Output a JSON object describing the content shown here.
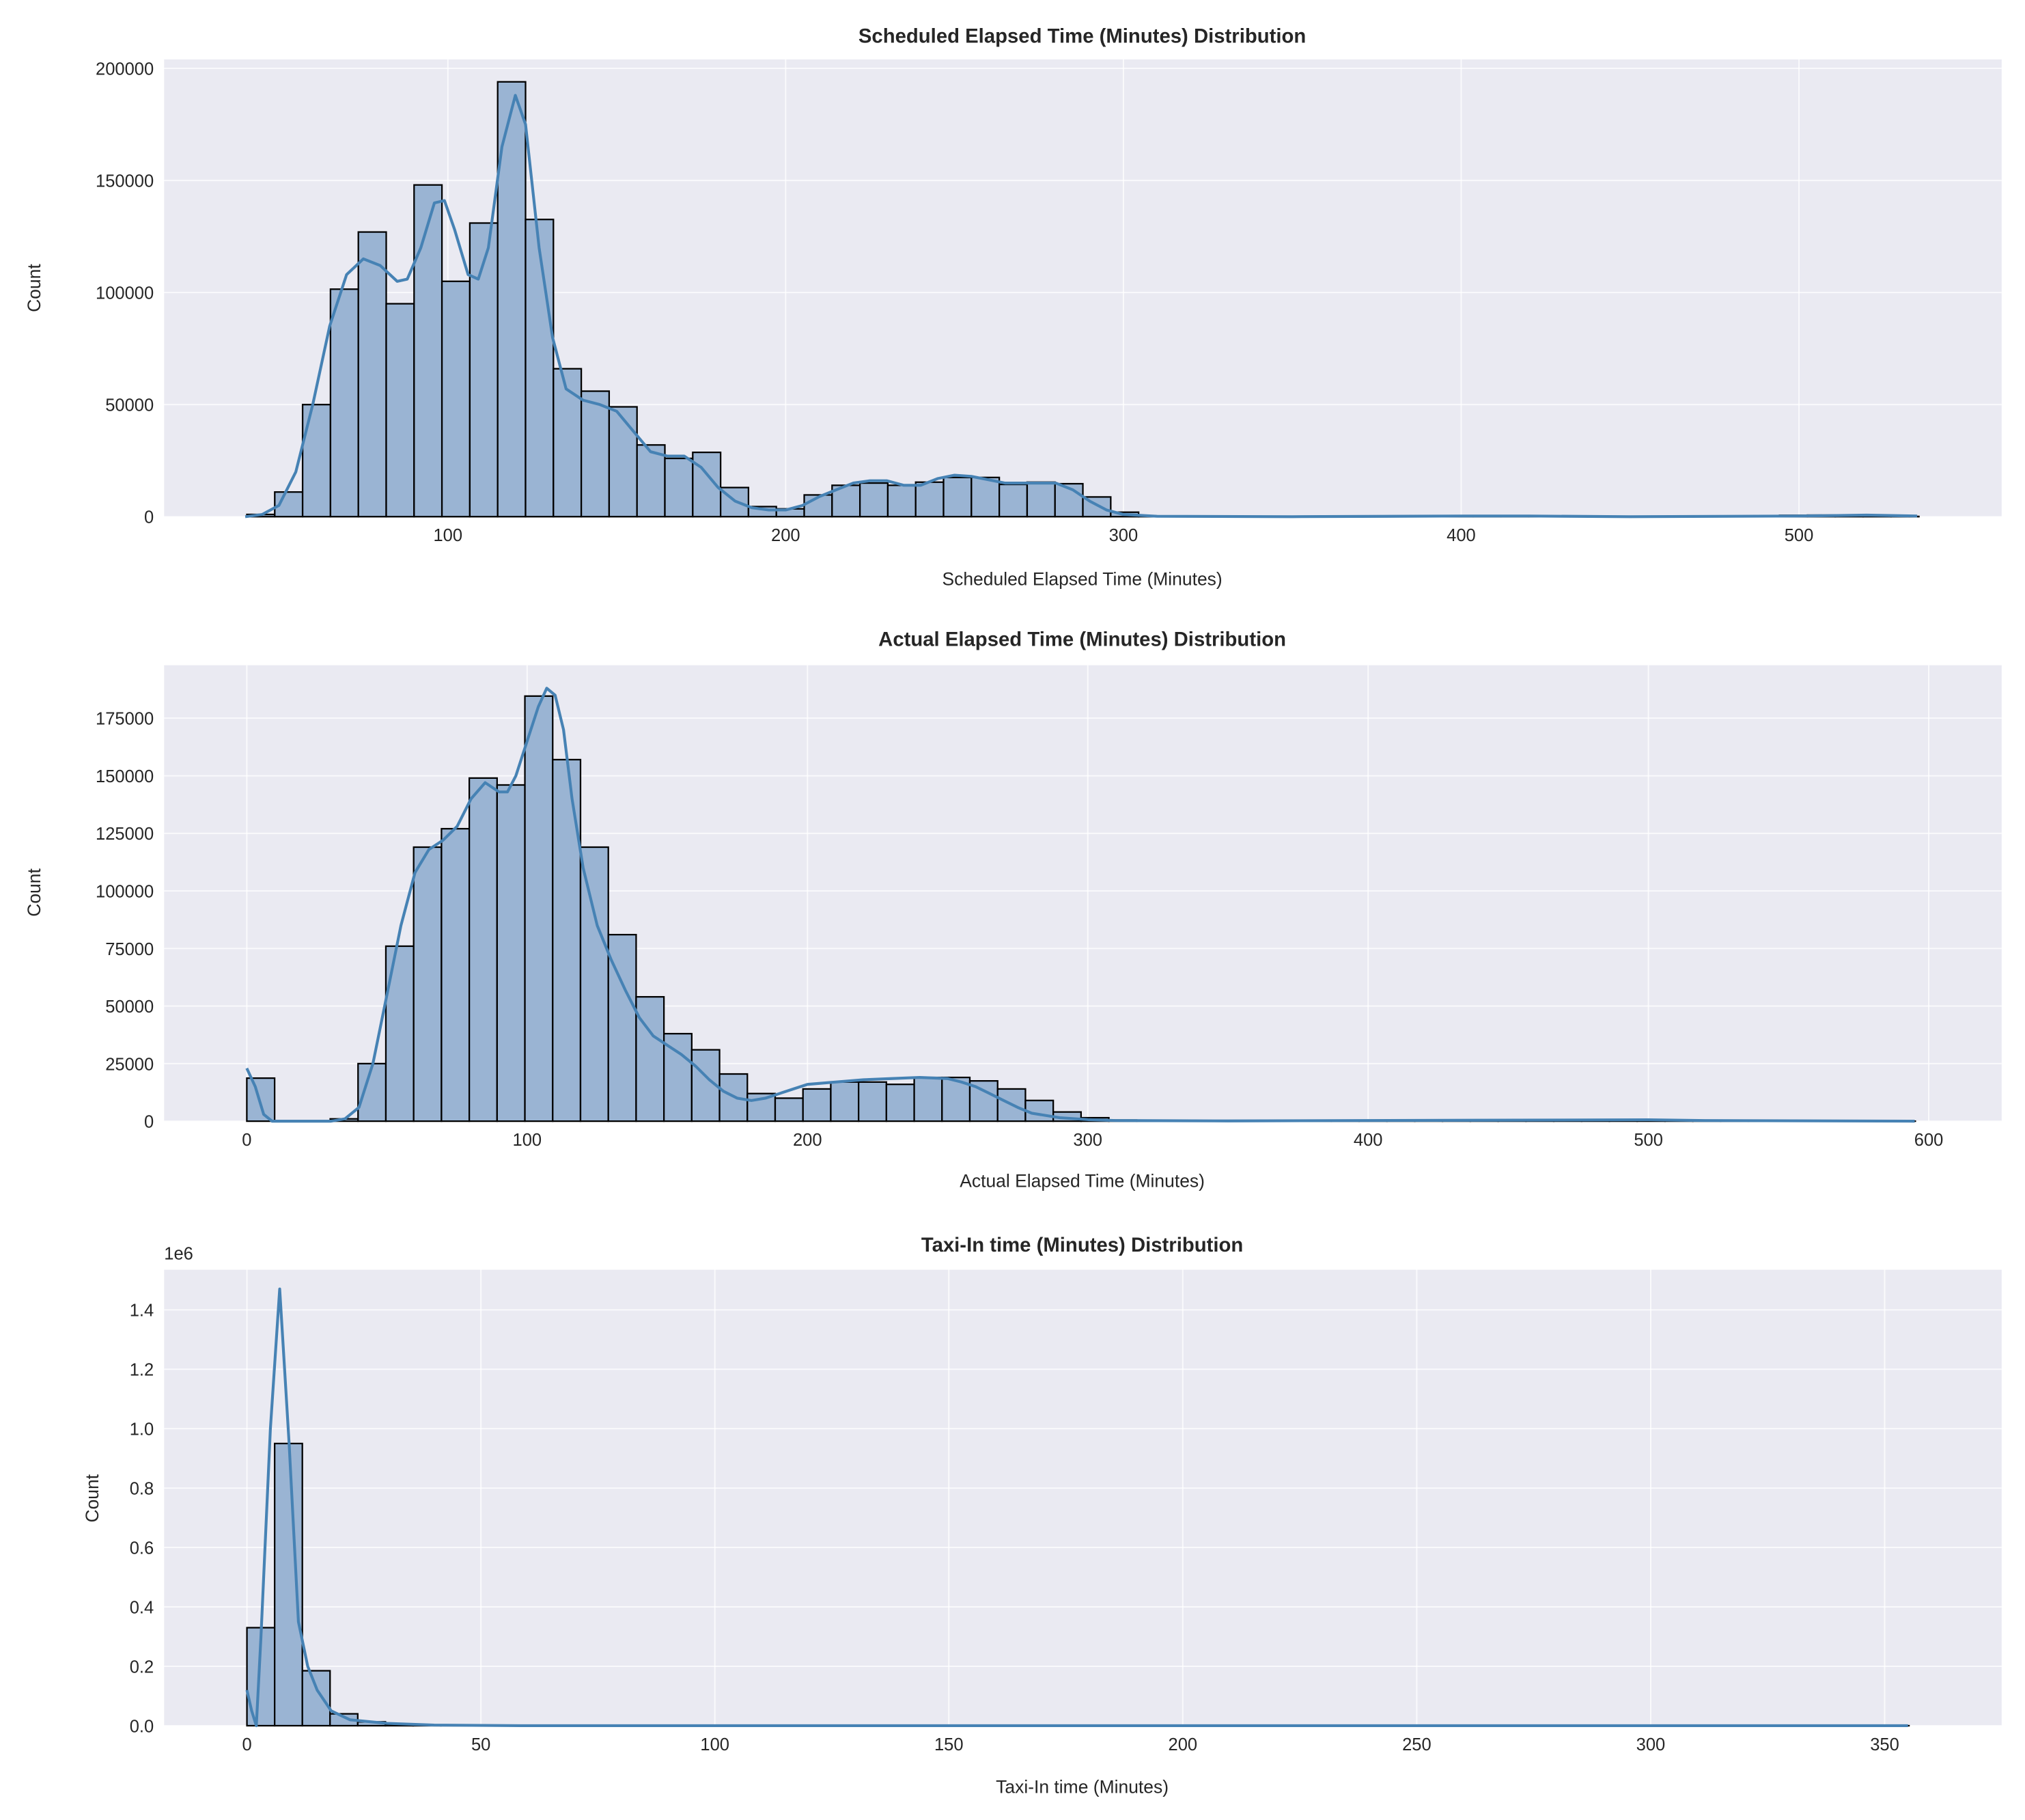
{
  "chart_data": [
    {
      "type": "histogram",
      "title": "Scheduled Elapsed Time (Minutes) Distribution",
      "xlabel": "Scheduled Elapsed Time (Minutes)",
      "ylabel": "Count",
      "xlim": [
        16,
        560
      ],
      "ylim": [
        0,
        204000
      ],
      "xticks": [
        100,
        200,
        300,
        400,
        500
      ],
      "yticks": [
        0,
        50000,
        100000,
        150000,
        200000
      ],
      "ytick_labels": [
        "0",
        "50000",
        "100000",
        "150000",
        "200000"
      ],
      "y_offset_text": "",
      "grid": true,
      "bin_start": 40.5,
      "bin_width": 8.25,
      "values": [
        1000,
        11000,
        50000,
        101500,
        127000,
        95000,
        148000,
        105000,
        131000,
        194000,
        132600,
        66000,
        56000,
        49000,
        32000,
        26000,
        28700,
        13000,
        4500,
        3500,
        9700,
        14000,
        15000,
        14000,
        15400,
        17500,
        17500,
        14400,
        15400,
        14700,
        8800,
        2000,
        300,
        100,
        50,
        30,
        20,
        20,
        20,
        30,
        50,
        100,
        300,
        300,
        200,
        100,
        50,
        30,
        20,
        20,
        20,
        50,
        100,
        200,
        300,
        600,
        700,
        400,
        200,
        100
      ],
      "kde": [
        [
          40,
          0
        ],
        [
          45,
          1000
        ],
        [
          50,
          5000
        ],
        [
          55,
          20000
        ],
        [
          60,
          50000
        ],
        [
          65,
          85000
        ],
        [
          70,
          108000
        ],
        [
          75,
          115000
        ],
        [
          80,
          112000
        ],
        [
          85,
          105000
        ],
        [
          88,
          106000
        ],
        [
          92,
          120000
        ],
        [
          96,
          140000
        ],
        [
          99,
          141000
        ],
        [
          102,
          128000
        ],
        [
          106,
          108000
        ],
        [
          109,
          106000
        ],
        [
          112,
          120000
        ],
        [
          116,
          165000
        ],
        [
          120,
          188000
        ],
        [
          123,
          175000
        ],
        [
          127,
          120000
        ],
        [
          131,
          80000
        ],
        [
          135,
          57000
        ],
        [
          140,
          52000
        ],
        [
          145,
          50000
        ],
        [
          150,
          47000
        ],
        [
          155,
          38000
        ],
        [
          160,
          29000
        ],
        [
          165,
          27000
        ],
        [
          170,
          27000
        ],
        [
          175,
          22000
        ],
        [
          180,
          13000
        ],
        [
          185,
          7000
        ],
        [
          190,
          4000
        ],
        [
          195,
          3000
        ],
        [
          200,
          3000
        ],
        [
          205,
          5000
        ],
        [
          210,
          9000
        ],
        [
          215,
          12000
        ],
        [
          220,
          15000
        ],
        [
          225,
          16000
        ],
        [
          230,
          16000
        ],
        [
          235,
          14000
        ],
        [
          240,
          14000
        ],
        [
          245,
          17000
        ],
        [
          250,
          18500
        ],
        [
          255,
          18000
        ],
        [
          260,
          16500
        ],
        [
          265,
          15000
        ],
        [
          270,
          15000
        ],
        [
          275,
          15000
        ],
        [
          280,
          15000
        ],
        [
          285,
          12000
        ],
        [
          290,
          7000
        ],
        [
          295,
          3000
        ],
        [
          300,
          1000
        ],
        [
          310,
          200
        ],
        [
          350,
          0
        ],
        [
          400,
          300
        ],
        [
          420,
          300
        ],
        [
          450,
          0
        ],
        [
          500,
          300
        ],
        [
          520,
          700
        ],
        [
          535,
          300
        ]
      ],
      "colors": {
        "bar_fill": "#9AB4D3",
        "bar_edge": "#000000",
        "kde": "#4682B4",
        "background": "#EAEAF2",
        "grid": "#FFFFFF"
      }
    },
    {
      "type": "histogram",
      "title": "Actual Elapsed Time (Minutes) Distribution",
      "xlabel": "Actual Elapsed Time (Minutes)",
      "ylabel": "Count",
      "xlim": [
        -29.5,
        626
      ],
      "ylim": [
        0,
        198000
      ],
      "xticks": [
        0,
        100,
        200,
        300,
        400,
        500,
        600
      ],
      "yticks": [
        0,
        25000,
        50000,
        75000,
        100000,
        125000,
        150000,
        175000
      ],
      "ytick_labels": [
        "0",
        "25000",
        "50000",
        "75000",
        "100000",
        "125000",
        "150000",
        "175000"
      ],
      "y_offset_text": "",
      "grid": true,
      "bin_start": 0,
      "bin_width": 9.92,
      "values": [
        18700,
        0,
        0,
        1000,
        25000,
        76000,
        119000,
        127000,
        149000,
        146000,
        184600,
        157000,
        119000,
        81000,
        54000,
        38000,
        31000,
        20500,
        12000,
        10000,
        14000,
        17000,
        17000,
        16000,
        19000,
        19000,
        17500,
        14000,
        9000,
        4000,
        1500,
        500,
        200,
        100,
        50,
        30,
        20,
        20,
        20,
        20,
        20,
        20,
        20,
        20,
        20,
        30,
        50,
        100,
        300,
        500,
        600,
        300,
        100,
        50,
        30,
        20,
        20,
        20,
        20,
        10
      ],
      "kde": [
        [
          0,
          23000
        ],
        [
          3,
          15000
        ],
        [
          6,
          3000
        ],
        [
          9,
          0
        ],
        [
          30,
          0
        ],
        [
          35,
          1000
        ],
        [
          40,
          6000
        ],
        [
          45,
          25000
        ],
        [
          50,
          55000
        ],
        [
          55,
          85000
        ],
        [
          60,
          108000
        ],
        [
          65,
          118000
        ],
        [
          70,
          122000
        ],
        [
          75,
          128000
        ],
        [
          80,
          140000
        ],
        [
          85,
          147000
        ],
        [
          90,
          143000
        ],
        [
          93,
          143000
        ],
        [
          96,
          150000
        ],
        [
          100,
          165000
        ],
        [
          104,
          180000
        ],
        [
          107,
          188000
        ],
        [
          110,
          185000
        ],
        [
          113,
          170000
        ],
        [
          116,
          140000
        ],
        [
          120,
          110000
        ],
        [
          125,
          85000
        ],
        [
          130,
          70000
        ],
        [
          135,
          57000
        ],
        [
          140,
          45000
        ],
        [
          145,
          37000
        ],
        [
          150,
          33000
        ],
        [
          155,
          29000
        ],
        [
          160,
          24000
        ],
        [
          165,
          18000
        ],
        [
          170,
          13000
        ],
        [
          175,
          10000
        ],
        [
          180,
          9000
        ],
        [
          185,
          10000
        ],
        [
          190,
          12000
        ],
        [
          195,
          14000
        ],
        [
          200,
          16000
        ],
        [
          210,
          17000
        ],
        [
          220,
          18000
        ],
        [
          230,
          18500
        ],
        [
          240,
          19000
        ],
        [
          250,
          18500
        ],
        [
          255,
          17000
        ],
        [
          260,
          15000
        ],
        [
          265,
          12000
        ],
        [
          270,
          9000
        ],
        [
          275,
          6000
        ],
        [
          280,
          3500
        ],
        [
          290,
          1500
        ],
        [
          300,
          700
        ],
        [
          310,
          300
        ],
        [
          350,
          100
        ],
        [
          500,
          600
        ],
        [
          520,
          300
        ],
        [
          595,
          0
        ]
      ],
      "colors": {
        "bar_fill": "#9AB4D3",
        "bar_edge": "#000000",
        "kde": "#4682B4",
        "background": "#EAEAF2",
        "grid": "#FFFFFF"
      }
    },
    {
      "type": "histogram",
      "title": "Taxi-In time (Minutes) Distribution",
      "xlabel": "Taxi-In time (Minutes)",
      "ylabel": "Count",
      "xlim": [
        -17.7,
        375
      ],
      "ylim": [
        0,
        1535000
      ],
      "xticks": [
        0,
        50,
        100,
        150,
        200,
        250,
        300,
        350
      ],
      "yticks": [
        0,
        200000,
        400000,
        600000,
        800000,
        1000000,
        1200000,
        1400000
      ],
      "ytick_labels": [
        "0.0",
        "0.2",
        "0.4",
        "0.6",
        "0.8",
        "1.0",
        "1.2",
        "1.4"
      ],
      "y_offset_text": "1e6",
      "grid": true,
      "bin_start": 0,
      "bin_width": 5.92,
      "values": [
        330000,
        950000,
        185000,
        40000,
        13000,
        5000,
        3000,
        1500,
        1000,
        600,
        400,
        300,
        200,
        150,
        100,
        80,
        60,
        50,
        40,
        30,
        20,
        20,
        20,
        20,
        10,
        10,
        10,
        10,
        10,
        10,
        10,
        10,
        10,
        10,
        10,
        10,
        10,
        10,
        10,
        10,
        10,
        10,
        10,
        10,
        10,
        10,
        10,
        10,
        10,
        10,
        10,
        10,
        10,
        10,
        10,
        10,
        10,
        10,
        10,
        10
      ],
      "kde": [
        [
          0,
          120000
        ],
        [
          1,
          50000
        ],
        [
          2,
          0
        ],
        [
          3,
          300000
        ],
        [
          5,
          1000000
        ],
        [
          7,
          1470000
        ],
        [
          9,
          950000
        ],
        [
          11,
          350000
        ],
        [
          13,
          200000
        ],
        [
          15,
          120000
        ],
        [
          18,
          50000
        ],
        [
          22,
          20000
        ],
        [
          30,
          8000
        ],
        [
          40,
          2000
        ],
        [
          60,
          0
        ],
        [
          355,
          0
        ]
      ],
      "colors": {
        "bar_fill": "#9AB4D3",
        "bar_edge": "#000000",
        "kde": "#4682B4",
        "background": "#EAEAF2",
        "grid": "#FFFFFF"
      }
    }
  ]
}
